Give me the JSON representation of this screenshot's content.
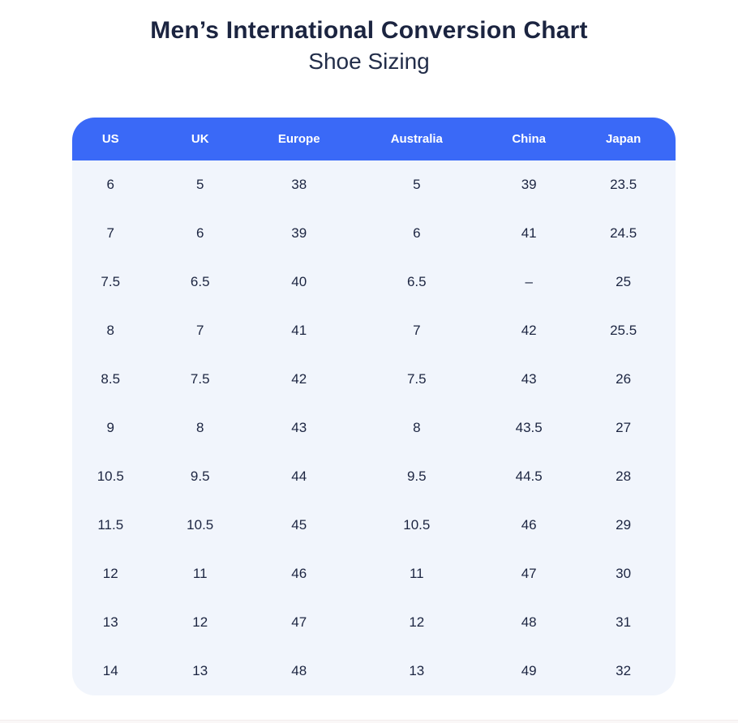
{
  "header": {
    "title": "Men’s International Conversion Chart",
    "subtitle": "Shoe Sizing"
  },
  "chart_data": {
    "type": "table",
    "title": "Men’s International Conversion Chart",
    "subtitle": "Shoe Sizing",
    "columns": [
      "US",
      "UK",
      "Europe",
      "Australia",
      "China",
      "Japan"
    ],
    "rows": [
      [
        "6",
        "5",
        "38",
        "5",
        "39",
        "23.5"
      ],
      [
        "7",
        "6",
        "39",
        "6",
        "41",
        "24.5"
      ],
      [
        "7.5",
        "6.5",
        "40",
        "6.5",
        "–",
        "25"
      ],
      [
        "8",
        "7",
        "41",
        "7",
        "42",
        "25.5"
      ],
      [
        "8.5",
        "7.5",
        "42",
        "7.5",
        "43",
        "26"
      ],
      [
        "9",
        "8",
        "43",
        "8",
        "43.5",
        "27"
      ],
      [
        "10.5",
        "9.5",
        "44",
        "9.5",
        "44.5",
        "28"
      ],
      [
        "11.5",
        "10.5",
        "45",
        "10.5",
        "46",
        "29"
      ],
      [
        "12",
        "11",
        "46",
        "11",
        "47",
        "30"
      ],
      [
        "13",
        "12",
        "47",
        "12",
        "48",
        "31"
      ],
      [
        "14",
        "13",
        "48",
        "13",
        "49",
        "32"
      ]
    ]
  },
  "colors": {
    "header_bg": "#3A69F7",
    "body_bg": "#F1F5FC",
    "header_text": "#FFFFFF",
    "cell_text": "#1C2541",
    "title_text": "#1B2440"
  }
}
